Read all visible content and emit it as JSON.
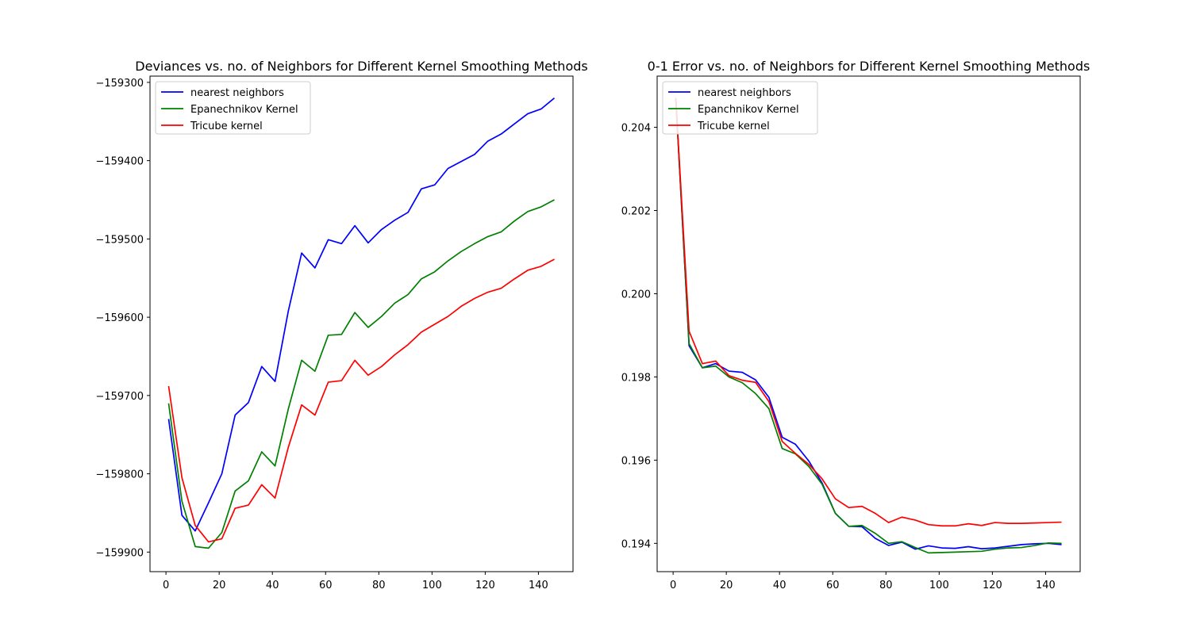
{
  "chart_data": [
    {
      "type": "line",
      "title": "Deviances vs. no. of Neighbors for Different Kernel Smoothing Methods",
      "xlabel": "",
      "ylabel": "",
      "xlim": [
        -6,
        153
      ],
      "ylim": [
        -159925,
        -159292
      ],
      "xticks": [
        0,
        20,
        40,
        60,
        80,
        100,
        120,
        140
      ],
      "yticks": [
        -159900,
        -159800,
        -159700,
        -159600,
        -159500,
        -159400,
        -159300
      ],
      "ytick_labels": [
        "−159900",
        "−159800",
        "−159700",
        "−159600",
        "−159500",
        "−159400",
        "−159300"
      ],
      "legend_position": "top-left",
      "x": [
        1,
        6,
        11,
        16,
        21,
        26,
        31,
        36,
        41,
        46,
        51,
        56,
        61,
        66,
        71,
        76,
        81,
        86,
        91,
        96,
        101,
        106,
        111,
        116,
        121,
        126,
        131,
        136,
        141,
        146
      ],
      "series": [
        {
          "name": "nearest neighbors",
          "color": "#0000ff",
          "values": [
            -159730,
            -159853,
            -159873,
            -159837,
            -159800,
            -159725,
            -159709,
            -159663,
            -159682,
            -159592,
            -159518,
            -159537,
            -159501,
            -159506,
            -159483,
            -159505,
            -159488,
            -159476,
            -159466,
            -159436,
            -159431,
            -159410,
            -159401,
            -159392,
            -159375,
            -159366,
            -159353,
            -159340,
            -159334,
            -159320
          ]
        },
        {
          "name": "Epanechnikov Kernel",
          "color": "#008000",
          "values": [
            -159710,
            -159835,
            -159893,
            -159895,
            -159875,
            -159822,
            -159809,
            -159772,
            -159790,
            -159717,
            -159655,
            -159669,
            -159623,
            -159622,
            -159594,
            -159613,
            -159599,
            -159582,
            -159571,
            -159551,
            -159542,
            -159528,
            -159516,
            -159506,
            -159497,
            -159491,
            -159477,
            -159465,
            -159459,
            -159450
          ]
        },
        {
          "name": "Tricube kernel",
          "color": "#ff0000",
          "values": [
            -159688,
            -159805,
            -159866,
            -159887,
            -159883,
            -159844,
            -159840,
            -159814,
            -159831,
            -159766,
            -159712,
            -159725,
            -159683,
            -159681,
            -159655,
            -159674,
            -159663,
            -159648,
            -159635,
            -159619,
            -159609,
            -159599,
            -159586,
            -159576,
            -159568,
            -159563,
            -159551,
            -159540,
            -159535,
            -159526
          ]
        }
      ]
    },
    {
      "type": "line",
      "title": "0-1 Error vs. no. of Neighbors for Different Kernel Smoothing Methods",
      "xlabel": "",
      "ylabel": "",
      "xlim": [
        -6,
        153
      ],
      "ylim": [
        0.19332,
        0.20523
      ],
      "xticks": [
        0,
        20,
        40,
        60,
        80,
        100,
        120,
        140
      ],
      "yticks": [
        0.194,
        0.196,
        0.198,
        0.2,
        0.202,
        0.204
      ],
      "ytick_labels": [
        "0.194",
        "0.196",
        "0.198",
        "0.200",
        "0.202",
        "0.204"
      ],
      "legend_position": "top-left",
      "x": [
        1,
        6,
        11,
        16,
        21,
        26,
        31,
        36,
        41,
        46,
        51,
        56,
        61,
        66,
        71,
        76,
        81,
        86,
        91,
        96,
        101,
        106,
        111,
        116,
        121,
        126,
        131,
        136,
        141,
        146
      ],
      "series": [
        {
          "name": "nearest neighbors",
          "color": "#0000ff",
          "values": [
            0.2047,
            0.19875,
            0.19822,
            0.19832,
            0.19814,
            0.19811,
            0.19793,
            0.19751,
            0.19655,
            0.19638,
            0.19598,
            0.19545,
            0.19472,
            0.19441,
            0.1944,
            0.19412,
            0.19395,
            0.19403,
            0.19386,
            0.19394,
            0.19389,
            0.19388,
            0.19392,
            0.19387,
            0.19389,
            0.19393,
            0.19397,
            0.19399,
            0.194,
            0.19397
          ]
        },
        {
          "name": "Epanchnikov Kernel",
          "color": "#008000",
          "values": [
            0.2047,
            0.1988,
            0.19822,
            0.19826,
            0.198,
            0.19786,
            0.1976,
            0.19724,
            0.19628,
            0.19615,
            0.19585,
            0.19542,
            0.19472,
            0.19441,
            0.19443,
            0.19424,
            0.194,
            0.19404,
            0.1939,
            0.19377,
            0.19378,
            0.19379,
            0.1938,
            0.19381,
            0.19386,
            0.19389,
            0.1939,
            0.19395,
            0.19401,
            0.194
          ]
        },
        {
          "name": "Tricube kernel",
          "color": "#ff0000",
          "values": [
            0.2047,
            0.1991,
            0.19832,
            0.19838,
            0.19803,
            0.19792,
            0.19787,
            0.19741,
            0.19645,
            0.19616,
            0.1959,
            0.19555,
            0.19507,
            0.19486,
            0.19489,
            0.19472,
            0.1945,
            0.19463,
            0.19456,
            0.19445,
            0.19442,
            0.19442,
            0.19447,
            0.19443,
            0.1945,
            0.19448,
            0.19448,
            0.19449,
            0.1945,
            0.19451
          ]
        }
      ]
    }
  ]
}
